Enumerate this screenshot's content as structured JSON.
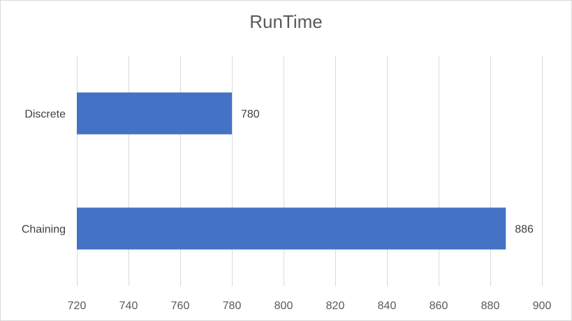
{
  "chart_data": {
    "type": "bar",
    "orientation": "horizontal",
    "title": "RunTime",
    "categories": [
      "Discrete",
      "Chaining"
    ],
    "values": [
      780,
      886
    ],
    "data_labels": [
      "780",
      "886"
    ],
    "xlim": [
      720,
      900
    ],
    "x_ticks": [
      720,
      740,
      760,
      780,
      800,
      820,
      840,
      860,
      880,
      900
    ],
    "x_tick_labels": [
      "720",
      "740",
      "760",
      "780",
      "800",
      "820",
      "840",
      "860",
      "880",
      "900"
    ],
    "xlabel": "",
    "ylabel": "",
    "grid": "vertical",
    "legend": "none",
    "bar_color": "#4472c4",
    "grid_color": "#d9d9d9"
  }
}
